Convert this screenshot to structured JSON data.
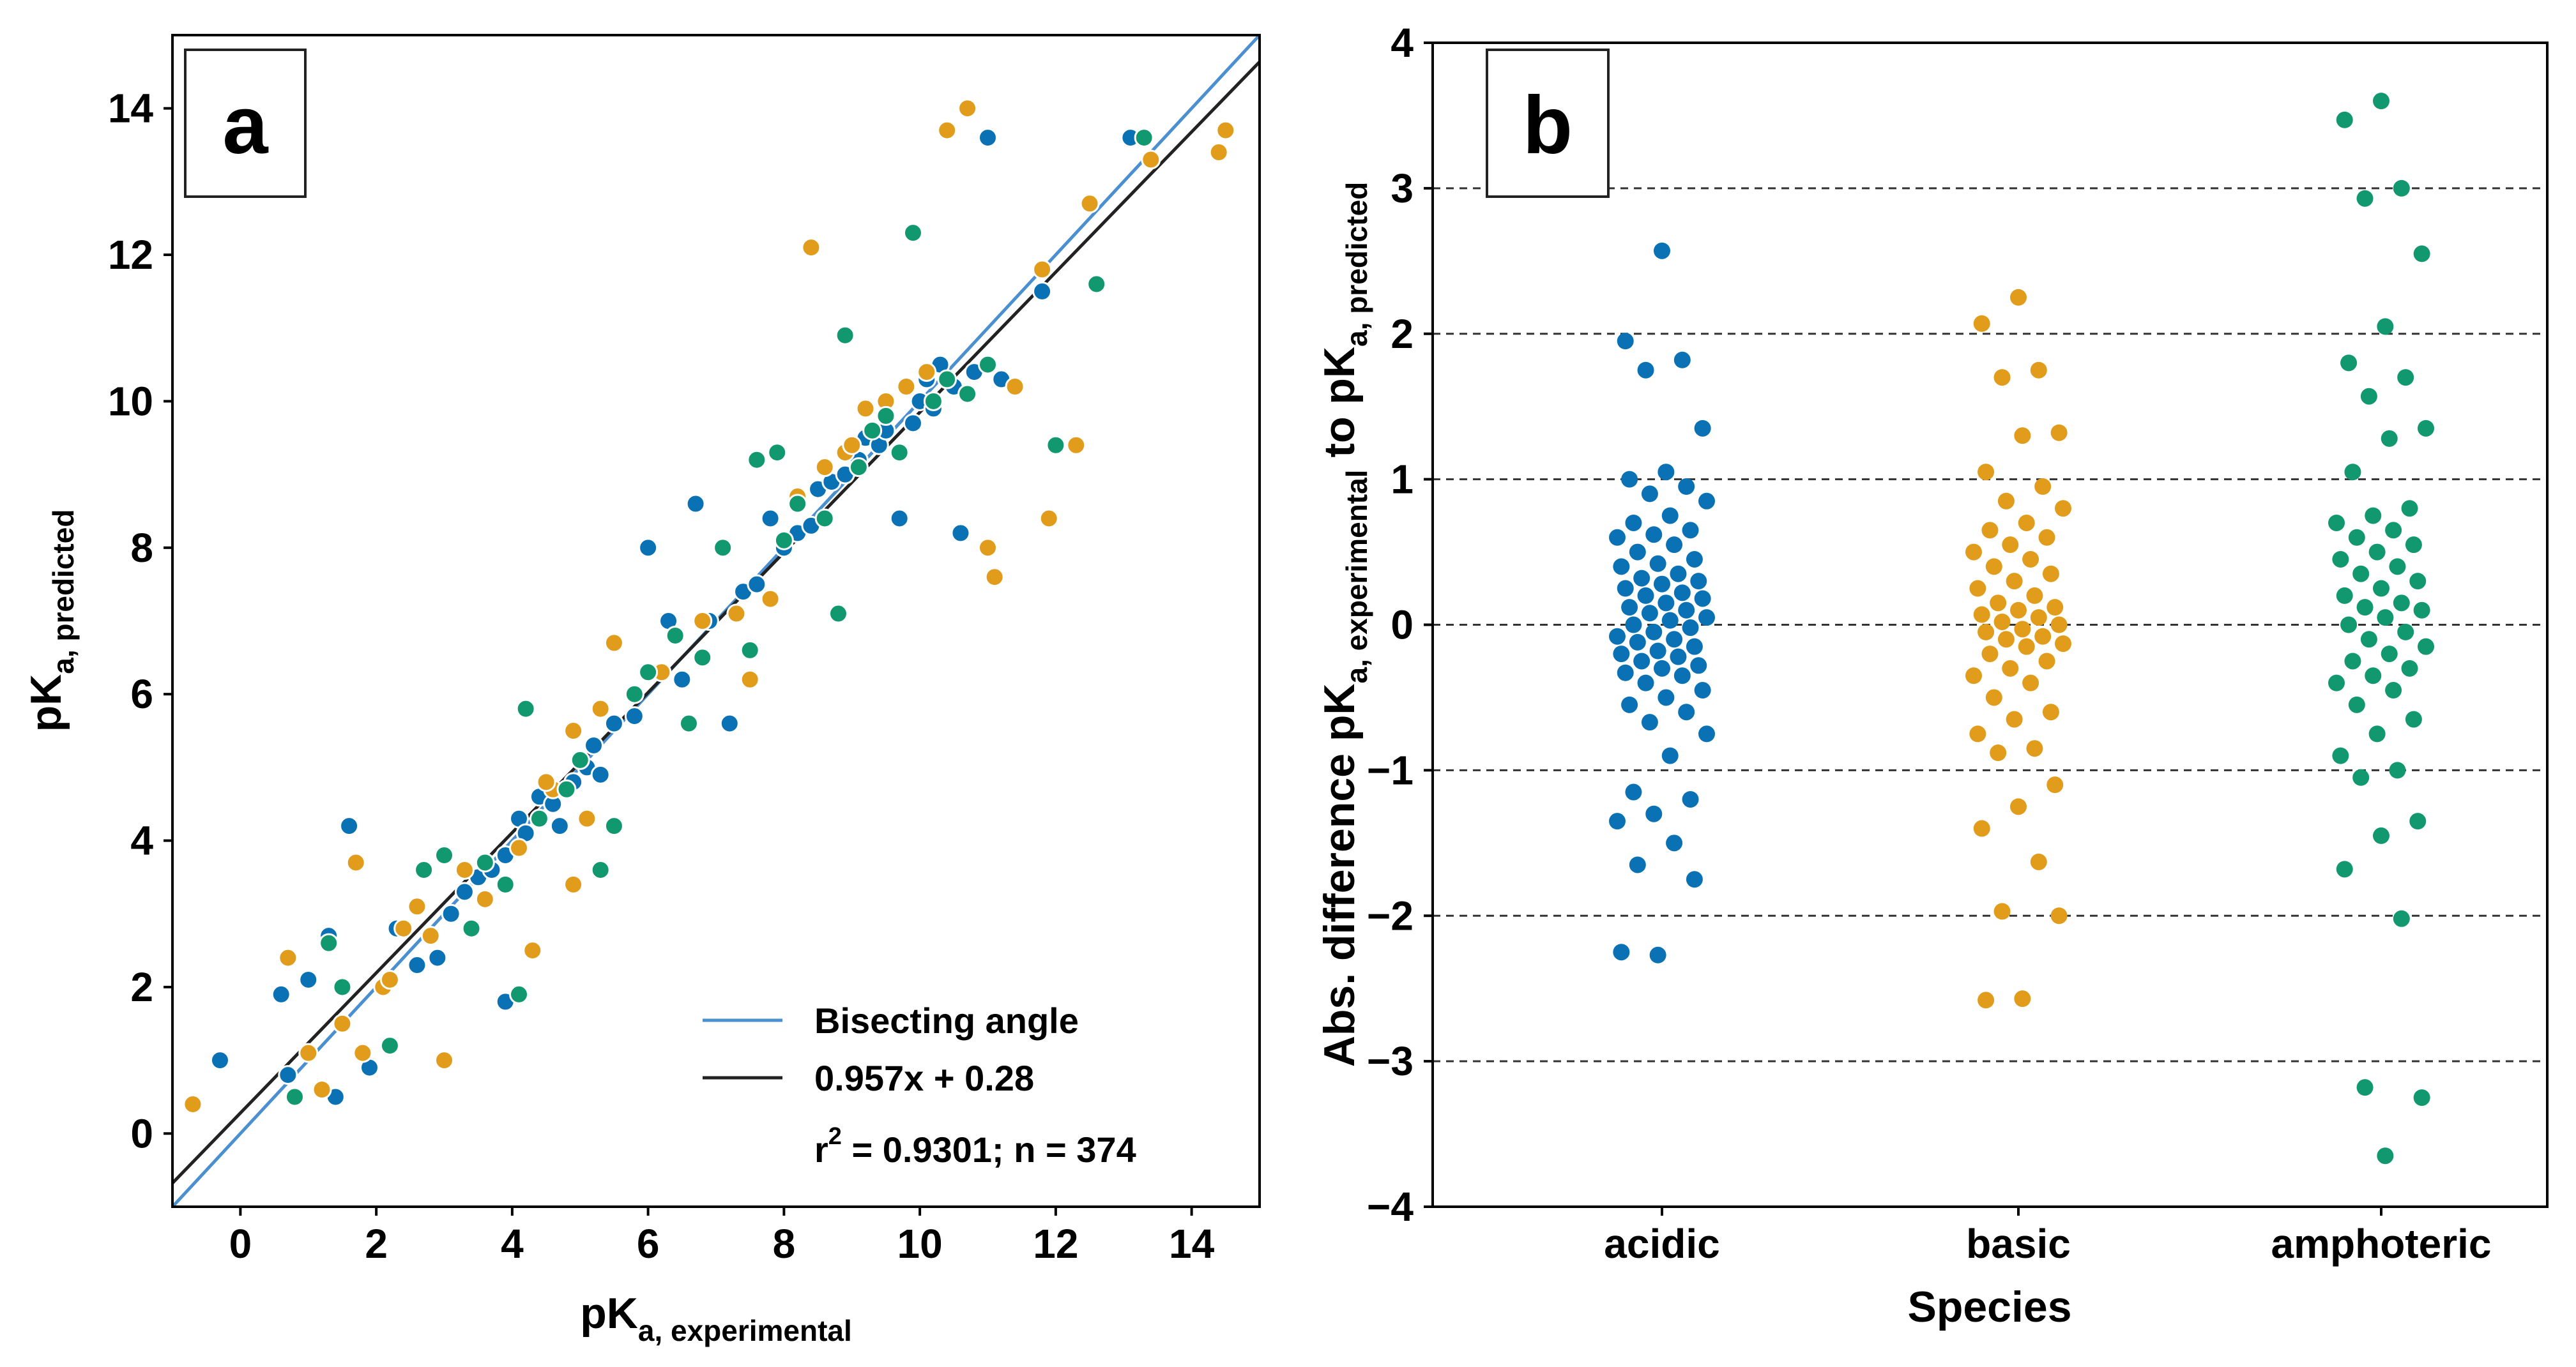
{
  "chart_data": [
    {
      "panel": "a",
      "type": "scatter",
      "panel_label": "a",
      "xlabel": {
        "main": "pK",
        "sub": "a, experimental"
      },
      "ylabel": {
        "main": "pK",
        "sub": "a, predicted"
      },
      "xlim": [
        -1,
        15
      ],
      "ylim": [
        -1,
        15
      ],
      "xticks": [
        "0",
        "2",
        "4",
        "6",
        "8",
        "10",
        "12",
        "14"
      ],
      "yticks": [
        "0",
        "2",
        "4",
        "6",
        "8",
        "10",
        "12",
        "14"
      ],
      "grid": false,
      "legend": {
        "position": "bottom-right",
        "entries": [
          {
            "label": "Bisecting angle",
            "color": "#4a8fd0"
          },
          {
            "label": "0.957x + 0.28",
            "color": "#222222"
          }
        ],
        "stats": {
          "main": "r",
          "sup": "2",
          "rest": " = 0.9301; n = 374"
        }
      },
      "lines": [
        {
          "name": "Bisecting angle",
          "slope": 1.0,
          "intercept": 0.0,
          "color": "#4a8fd0"
        },
        {
          "name": "0.957x + 0.28",
          "slope": 0.957,
          "intercept": 0.28,
          "color": "#222222"
        }
      ],
      "series": [
        {
          "name": "acidic",
          "color": "#0a72b4",
          "points": [
            [
              -0.3,
              1.0
            ],
            [
              0.6,
              1.9
            ],
            [
              0.7,
              0.8
            ],
            [
              1.0,
              2.1
            ],
            [
              1.3,
              2.7
            ],
            [
              1.4,
              0.5
            ],
            [
              1.6,
              4.2
            ],
            [
              1.9,
              0.9
            ],
            [
              2.3,
              2.8
            ],
            [
              2.6,
              2.3
            ],
            [
              2.9,
              2.4
            ],
            [
              3.1,
              3.0
            ],
            [
              3.3,
              3.3
            ],
            [
              3.5,
              3.5
            ],
            [
              3.7,
              3.6
            ],
            [
              3.9,
              3.8
            ],
            [
              3.9,
              1.8
            ],
            [
              4.1,
              4.3
            ],
            [
              4.2,
              4.1
            ],
            [
              4.4,
              4.6
            ],
            [
              4.6,
              4.5
            ],
            [
              4.7,
              4.2
            ],
            [
              4.9,
              4.8
            ],
            [
              5.1,
              5.0
            ],
            [
              5.2,
              5.3
            ],
            [
              5.3,
              4.9
            ],
            [
              5.5,
              5.6
            ],
            [
              5.8,
              5.7
            ],
            [
              6.0,
              8.0
            ],
            [
              6.3,
              7.0
            ],
            [
              6.5,
              6.2
            ],
            [
              6.7,
              8.6
            ],
            [
              6.9,
              7.0
            ],
            [
              7.2,
              5.6
            ],
            [
              7.4,
              7.4
            ],
            [
              7.6,
              7.5
            ],
            [
              7.8,
              8.4
            ],
            [
              8.0,
              8.0
            ],
            [
              8.2,
              8.2
            ],
            [
              8.4,
              8.3
            ],
            [
              8.5,
              8.8
            ],
            [
              8.7,
              8.9
            ],
            [
              8.9,
              9.0
            ],
            [
              9.1,
              9.2
            ],
            [
              9.2,
              9.5
            ],
            [
              9.4,
              9.4
            ],
            [
              9.5,
              9.6
            ],
            [
              9.7,
              8.4
            ],
            [
              9.9,
              9.7
            ],
            [
              10.0,
              10.0
            ],
            [
              10.1,
              10.3
            ],
            [
              10.2,
              9.9
            ],
            [
              10.3,
              10.5
            ],
            [
              10.5,
              10.2
            ],
            [
              10.6,
              8.2
            ],
            [
              10.8,
              10.4
            ],
            [
              11.0,
              13.6
            ],
            [
              11.2,
              10.3
            ],
            [
              11.8,
              11.5
            ],
            [
              13.1,
              13.6
            ]
          ]
        },
        {
          "name": "basic",
          "color": "#e19c1c",
          "points": [
            [
              -0.7,
              0.4
            ],
            [
              0.7,
              2.4
            ],
            [
              1.0,
              1.1
            ],
            [
              1.2,
              0.6
            ],
            [
              1.5,
              1.5
            ],
            [
              1.7,
              3.7
            ],
            [
              1.8,
              1.1
            ],
            [
              2.1,
              2.0
            ],
            [
              2.4,
              2.8
            ],
            [
              2.6,
              3.1
            ],
            [
              2.8,
              2.7
            ],
            [
              3.0,
              1.0
            ],
            [
              3.3,
              3.6
            ],
            [
              3.6,
              3.2
            ],
            [
              4.1,
              3.9
            ],
            [
              4.3,
              2.5
            ],
            [
              4.6,
              4.7
            ],
            [
              4.9,
              5.5
            ],
            [
              4.9,
              3.4
            ],
            [
              5.1,
              4.3
            ],
            [
              5.3,
              5.8
            ],
            [
              5.5,
              6.7
            ],
            [
              6.2,
              6.3
            ],
            [
              6.8,
              7.0
            ],
            [
              7.3,
              7.1
            ],
            [
              7.5,
              6.2
            ],
            [
              7.8,
              7.3
            ],
            [
              8.2,
              8.7
            ],
            [
              8.4,
              12.1
            ],
            [
              8.6,
              9.1
            ],
            [
              8.9,
              9.3
            ],
            [
              9.2,
              9.9
            ],
            [
              9.5,
              10.0
            ],
            [
              9.8,
              10.2
            ],
            [
              10.1,
              10.4
            ],
            [
              10.4,
              13.7
            ],
            [
              10.7,
              14.0
            ],
            [
              11.0,
              8.0
            ],
            [
              11.1,
              7.6
            ],
            [
              11.4,
              10.2
            ],
            [
              11.8,
              11.8
            ],
            [
              11.9,
              8.4
            ],
            [
              12.3,
              9.4
            ],
            [
              12.5,
              12.7
            ],
            [
              13.4,
              13.3
            ],
            [
              14.4,
              13.4
            ],
            [
              14.5,
              13.7
            ],
            [
              2.2,
              2.1
            ],
            [
              4.5,
              4.8
            ],
            [
              9.0,
              9.4
            ]
          ]
        },
        {
          "name": "amphoteric",
          "color": "#12986f",
          "points": [
            [
              0.8,
              0.5
            ],
            [
              1.3,
              2.6
            ],
            [
              1.5,
              2.0
            ],
            [
              2.2,
              1.2
            ],
            [
              2.7,
              3.6
            ],
            [
              3.0,
              3.8
            ],
            [
              3.4,
              2.8
            ],
            [
              3.9,
              3.4
            ],
            [
              4.1,
              1.9
            ],
            [
              4.2,
              5.8
            ],
            [
              4.4,
              4.3
            ],
            [
              4.8,
              4.7
            ],
            [
              5.0,
              5.1
            ],
            [
              5.3,
              3.6
            ],
            [
              5.5,
              4.2
            ],
            [
              6.0,
              6.3
            ],
            [
              6.4,
              6.8
            ],
            [
              6.6,
              5.6
            ],
            [
              6.8,
              6.5
            ],
            [
              7.1,
              8.0
            ],
            [
              7.5,
              6.6
            ],
            [
              7.6,
              9.2
            ],
            [
              7.9,
              9.3
            ],
            [
              8.2,
              8.6
            ],
            [
              8.6,
              8.4
            ],
            [
              8.8,
              7.1
            ],
            [
              8.9,
              10.9
            ],
            [
              9.1,
              9.1
            ],
            [
              9.3,
              9.6
            ],
            [
              9.5,
              9.8
            ],
            [
              9.7,
              9.3
            ],
            [
              9.9,
              12.3
            ],
            [
              10.2,
              10.0
            ],
            [
              10.4,
              10.3
            ],
            [
              10.7,
              10.1
            ],
            [
              11.0,
              10.5
            ],
            [
              12.0,
              9.4
            ],
            [
              12.6,
              11.6
            ],
            [
              13.3,
              13.6
            ],
            [
              5.8,
              6.0
            ],
            [
              3.6,
              3.7
            ],
            [
              8.0,
              8.1
            ]
          ]
        }
      ]
    },
    {
      "panel": "b",
      "type": "strip",
      "panel_label": "b",
      "categories": [
        "acidic",
        "basic",
        "amphoteric"
      ],
      "xlabel": "Species",
      "ylabel": {
        "t1": "Abs. difference pK",
        "s1": "a, experimental",
        "t2": " to pK",
        "s2": "a, predicted"
      },
      "ylim": [
        -4,
        4
      ],
      "yticks": [
        "−4",
        "−3",
        "−2",
        "−1",
        "0",
        "1",
        "2",
        "3",
        "4"
      ],
      "grid": "dashed horizontal at integer values",
      "series": [
        {
          "name": "acidic",
          "color": "#0a72b4",
          "values": [
            2.57,
            1.95,
            1.82,
            1.75,
            1.35,
            1.05,
            1.0,
            0.95,
            0.9,
            0.85,
            0.75,
            0.7,
            0.65,
            0.62,
            0.6,
            0.55,
            0.5,
            0.45,
            0.42,
            0.4,
            0.35,
            0.32,
            0.3,
            0.28,
            0.25,
            0.22,
            0.2,
            0.18,
            0.15,
            0.12,
            0.1,
            0.08,
            0.05,
            0.03,
            0.0,
            -0.02,
            -0.05,
            -0.08,
            -0.1,
            -0.12,
            -0.15,
            -0.18,
            -0.2,
            -0.22,
            -0.25,
            -0.28,
            -0.3,
            -0.33,
            -0.35,
            -0.4,
            -0.45,
            -0.5,
            -0.55,
            -0.6,
            -0.67,
            -0.75,
            -0.9,
            -1.15,
            -1.2,
            -1.3,
            -1.35,
            -1.5,
            -1.65,
            -1.75,
            -2.27,
            -2.25
          ]
        },
        {
          "name": "basic",
          "color": "#e19c1c",
          "values": [
            2.25,
            2.07,
            1.75,
            1.7,
            1.32,
            1.3,
            1.05,
            0.95,
            0.85,
            0.8,
            0.7,
            0.65,
            0.6,
            0.55,
            0.5,
            0.45,
            0.4,
            0.35,
            0.3,
            0.25,
            0.2,
            0.15,
            0.12,
            0.1,
            0.07,
            0.05,
            0.02,
            0.0,
            -0.03,
            -0.05,
            -0.08,
            -0.1,
            -0.13,
            -0.15,
            -0.2,
            -0.25,
            -0.3,
            -0.35,
            -0.4,
            -0.5,
            -0.6,
            -0.65,
            -0.75,
            -0.85,
            -0.88,
            -1.1,
            -1.25,
            -1.4,
            -1.63,
            -1.97,
            -2.0,
            -2.57,
            -2.58
          ]
        },
        {
          "name": "amphoteric",
          "color": "#12986f",
          "values": [
            3.6,
            3.47,
            3.0,
            2.93,
            2.55,
            2.05,
            1.8,
            1.7,
            1.57,
            1.35,
            1.28,
            1.05,
            0.8,
            0.75,
            0.7,
            0.65,
            0.6,
            0.55,
            0.5,
            0.45,
            0.4,
            0.35,
            0.3,
            0.25,
            0.2,
            0.15,
            0.12,
            0.1,
            0.05,
            0.0,
            -0.05,
            -0.1,
            -0.15,
            -0.2,
            -0.25,
            -0.3,
            -0.35,
            -0.4,
            -0.45,
            -0.55,
            -0.65,
            -0.75,
            -0.9,
            -1.0,
            -1.05,
            -1.35,
            -1.45,
            -1.68,
            -2.02,
            -3.18,
            -3.25,
            -3.65
          ]
        }
      ]
    }
  ]
}
